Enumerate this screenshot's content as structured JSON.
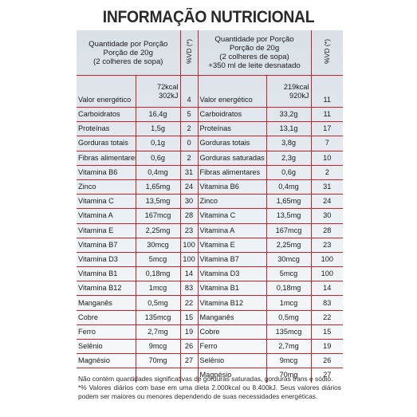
{
  "title": "INFORMAÇÃO NUTRICIONAL",
  "header": {
    "left_portion": [
      "Quantidade por Porção",
      "Porção de 20g",
      "(2 colheres de sopa)"
    ],
    "right_portion": [
      "Quantidade por Porção",
      "Porção de 20g",
      "(2 colheres de sopa)",
      "+350 ml de leite desnatado"
    ],
    "vd_label": "%VD (*)"
  },
  "energy": {
    "left_label": "Valor energético",
    "left_kcal": "72kcal",
    "left_kj": "302kJ",
    "left_vd": "4",
    "right_label": "Valor energético",
    "right_kcal": "219kcal",
    "right_kj": "920kJ",
    "right_vd": "11"
  },
  "rows": [
    {
      "l_name": "Carboidratos",
      "l_val": "16,4g",
      "l_vd": "5",
      "r_name": "Carboidratos",
      "r_val": "33,2g",
      "r_vd": "11"
    },
    {
      "l_name": "Proteínas",
      "l_val": "1,5g",
      "l_vd": "2",
      "r_name": "Proteínas",
      "r_val": "13,1g",
      "r_vd": "17"
    },
    {
      "l_name": "Gorduras totais",
      "l_val": "0,1g",
      "l_vd": "0",
      "r_name": "Gorduras totais",
      "r_val": "3,8g",
      "r_vd": "7"
    },
    {
      "l_name": "Fibras alimentares",
      "l_val": "0,6g",
      "l_vd": "2",
      "r_name": "Gorduras saturadas",
      "r_val": "2,3g",
      "r_vd": "10"
    },
    {
      "l_name": "Vitamina B6",
      "l_val": "0,4mg",
      "l_vd": "31",
      "r_name": "Fibras alimentares",
      "r_val": "0,6g",
      "r_vd": "2"
    },
    {
      "l_name": "Zinco",
      "l_val": "1,65mg",
      "l_vd": "24",
      "r_name": "Vitamina B6",
      "r_val": "0,4mg",
      "r_vd": "31"
    },
    {
      "l_name": "Vitamina C",
      "l_val": "13,5mg",
      "l_vd": "30",
      "r_name": "Zinco",
      "r_val": "1,65mg",
      "r_vd": "24"
    },
    {
      "l_name": "Vitamina A",
      "l_val": "167mcg",
      "l_vd": "28",
      "r_name": "Vitamina C",
      "r_val": "13,5mg",
      "r_vd": "30"
    },
    {
      "l_name": "Vitamina E",
      "l_val": "2,25mg",
      "l_vd": "23",
      "r_name": "Vitamina A",
      "r_val": "167mcg",
      "r_vd": "28"
    },
    {
      "l_name": "Vitamina B7",
      "l_val": "30mcg",
      "l_vd": "100",
      "r_name": "Vitamina E",
      "r_val": "2,25mg",
      "r_vd": "23"
    },
    {
      "l_name": "Vitamina D3",
      "l_val": "5mcg",
      "l_vd": "100",
      "r_name": "Vitamina B7",
      "r_val": "30mcg",
      "r_vd": "100"
    },
    {
      "l_name": "Vitamina B1",
      "l_val": "0,18mg",
      "l_vd": "14",
      "r_name": "Vitamina D3",
      "r_val": "5mcg",
      "r_vd": "100"
    },
    {
      "l_name": "Vitamina B12",
      "l_val": "1mcg",
      "l_vd": "83",
      "r_name": "Vitamina B1",
      "r_val": "0,18mg",
      "r_vd": "14"
    },
    {
      "l_name": "Manganês",
      "l_val": "0,5mg",
      "l_vd": "22",
      "r_name": "Vitamina B12",
      "r_val": "1mcg",
      "r_vd": "83"
    },
    {
      "l_name": "Cobre",
      "l_val": "135mcg",
      "l_vd": "15",
      "r_name": "Manganês",
      "r_val": "0,5mg",
      "r_vd": "22"
    },
    {
      "l_name": "Ferro",
      "l_val": "2,7mg",
      "l_vd": "19",
      "r_name": "Cobre",
      "r_val": "135mcg",
      "r_vd": "15"
    },
    {
      "l_name": "Selênio",
      "l_val": "9mcg",
      "l_vd": "26",
      "r_name": "Ferro",
      "r_val": "2,7mg",
      "r_vd": "19"
    },
    {
      "l_name": "Magnésio",
      "l_val": "70mg",
      "l_vd": "27",
      "r_name": "Selênio",
      "r_val": "9mcg",
      "r_vd": "26"
    }
  ],
  "last_row": {
    "r_name": "Magnésio",
    "r_val": "70mg",
    "r_vd": "27"
  },
  "footnotes": [
    "Não contém quantidades significativas de gorduras saturadas, gorduras trans e sódio.",
    "*% Valores diários com base em uma dieta 2.000kcal ou 8.400kJ. Seus valores diários podem ser maiores ou menores dependendo de suas necessidades energéticas."
  ],
  "colors": {
    "rule": "#c8222a",
    "panel_top": "#d9e0e6",
    "panel_bottom": "#f7f9fb"
  }
}
